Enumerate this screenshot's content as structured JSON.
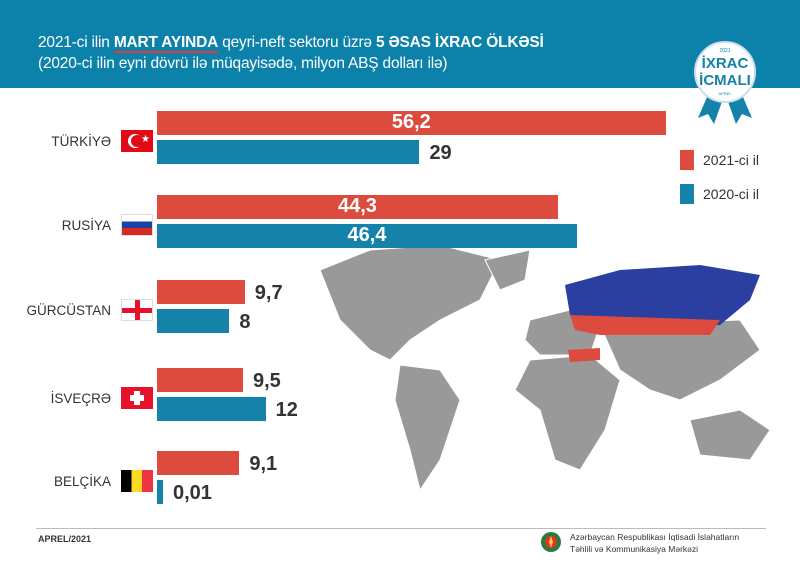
{
  "header": {
    "line1_a": "2021-ci ilin ",
    "line1_highlight": "MART AYINDA",
    "line1_b": " qeyri-neft sektoru üzrə ",
    "line1_bold": "5 ƏSAS İXRAC ÖLKƏSİ",
    "line2": "(2020-ci ilin eyni dövrü ilə müqayisədə, milyon ABŞ dolları ilə)"
  },
  "badge": {
    "year": "2021",
    "line1": "İXRAC",
    "line2": "İCMALI",
    "month": "APREL"
  },
  "chart_data": {
    "type": "bar",
    "orientation": "horizontal",
    "categories": [
      "TÜRKİYƏ",
      "RUSİYA",
      "GÜRCÜSTAN",
      "İSVEÇRƏ",
      "BELÇİKA"
    ],
    "series": [
      {
        "name": "2021-ci il",
        "color": "#dc4b3e",
        "values": [
          56.2,
          44.3,
          9.7,
          9.5,
          9.1
        ],
        "labels": [
          "56,2",
          "44,3",
          "9,7",
          "9,5",
          "9,1"
        ]
      },
      {
        "name": "2020-ci il",
        "color": "#1582a9",
        "values": [
          29,
          46.4,
          8,
          12,
          0.01
        ],
        "labels": [
          "29",
          "46,4",
          "8",
          "12",
          "0,01"
        ]
      }
    ],
    "legend": "right"
  },
  "footer": {
    "date": "APREL/2021",
    "org1": "Azərbaycan Respublikası İqtisadi İslahatların",
    "org2": "Təhlili və Kommunikasiya Mərkəzi"
  }
}
